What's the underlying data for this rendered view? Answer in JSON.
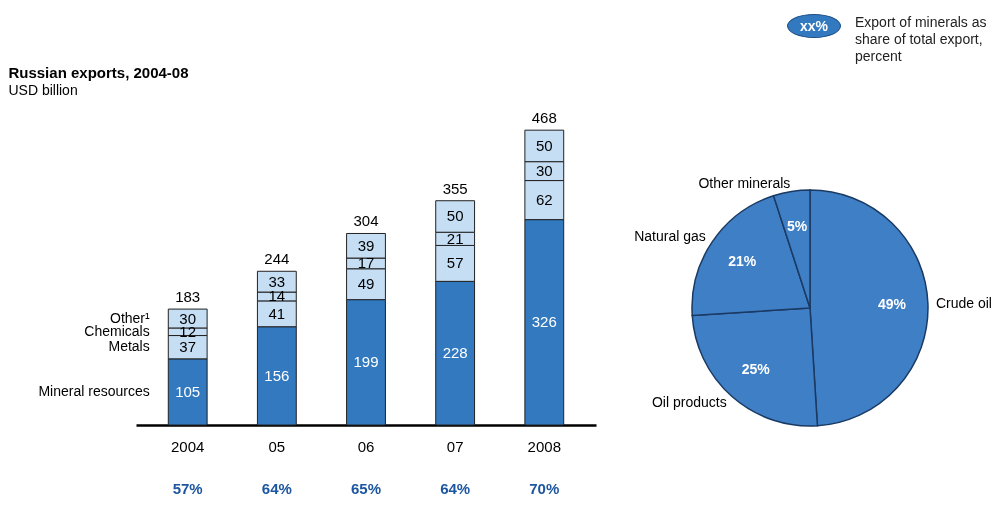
{
  "chart_data": [
    {
      "type": "bar",
      "title": "Russian exports, 2004-08",
      "subtitle": "USD billion",
      "stacked": true,
      "data_labels": true,
      "categories": [
        "2004",
        "05",
        "06",
        "07",
        "2008"
      ],
      "series": [
        {
          "name": "Mineral resources",
          "color": "#3279c0",
          "values": [
            105,
            156,
            199,
            228,
            326
          ]
        },
        {
          "name": "Metals",
          "color": "#c6def3",
          "values": [
            37,
            41,
            49,
            57,
            62
          ]
        },
        {
          "name": "Chemicals",
          "color": "#c6def3",
          "values": [
            12,
            14,
            17,
            21,
            30
          ]
        },
        {
          "name": "Other¹",
          "color": "#c6def3",
          "values": [
            30,
            33,
            39,
            50,
            50
          ]
        }
      ],
      "totals": [
        "183",
        "244",
        "304",
        "355",
        "468"
      ],
      "annotations": [
        "57%",
        "64%",
        "65%",
        "64%",
        "70%",
        "xx%",
        "Export of minerals as share of total export, percent"
      ]
    },
    {
      "type": "pie",
      "categories": [
        "Crude oil",
        "Oil products",
        "Natural gas",
        "Other minerals"
      ],
      "values": [
        49,
        25,
        21,
        5
      ],
      "colors": [
        "#3f7fc6",
        "#3f7fc6",
        "#3f7fc6",
        "#3f7fc6"
      ],
      "value_labels": [
        "49%",
        "25%",
        "21%",
        "5%"
      ]
    }
  ]
}
